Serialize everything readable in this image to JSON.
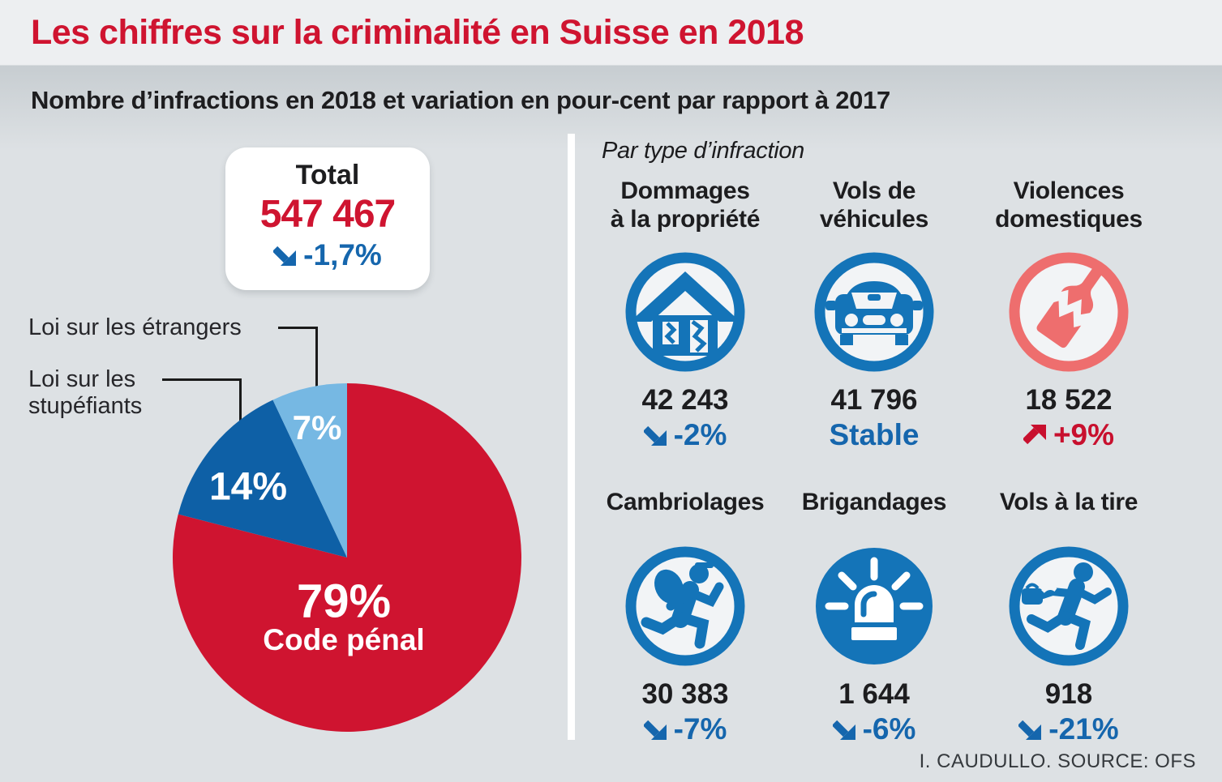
{
  "header": {
    "title": "Les chiffres sur la criminalité en Suisse en 2018",
    "subtitle": "Nombre d’infractions en 2018 et variation en pour-cent par rapport à 2017"
  },
  "colors": {
    "red": "#cf1430",
    "pie-dark": "#0e60a6",
    "pie-light": "#76b8e3",
    "icon-blue": "#1474b8",
    "salmon": "#ee6e6e",
    "text-blue": "#1566ad",
    "up-red": "#c8102e",
    "paper": "#f2f4f6",
    "bg": "#dde1e4"
  },
  "total": {
    "label": "Total",
    "value": "547 467",
    "change": "-1,7%",
    "trend": "down"
  },
  "pie_callouts": {
    "etrangers": "Loi sur les étrangers",
    "stupefiants_line1": "Loi sur les",
    "stupefiants_line2": "stupéfiants"
  },
  "chart_data": {
    "type": "pie",
    "unit": "percent",
    "start_angle": "12-o-clock",
    "direction": "clockwise",
    "total_value_displayed": "547 467",
    "total_change_displayed": "-1,7%",
    "slices": [
      {
        "label": "Code pénal",
        "value": 79,
        "display": "79%",
        "color": "#cf1430",
        "text_color": "#ffffff"
      },
      {
        "label": "Loi sur les stupéfiants",
        "value": 14,
        "display": "14%",
        "color": "#0e60a6",
        "text_color": "#ffffff"
      },
      {
        "label": "Loi sur les étrangers",
        "value": 7,
        "display": "7%",
        "color": "#76b8e3",
        "text_color": "#ffffff"
      }
    ]
  },
  "section": {
    "heading": "Par type d’infraction"
  },
  "stats": {
    "items": [
      {
        "title_line1": "Dommages",
        "title_line2": "à la propriété",
        "value": "42 243",
        "change": "-2%",
        "trend": "down",
        "icon": "broken-house-icon",
        "theme": "blue"
      },
      {
        "title_line1": "Vols de",
        "title_line2": "véhicules",
        "value": "41 796",
        "change": "Stable",
        "trend": "stable",
        "icon": "car-icon",
        "theme": "blue"
      },
      {
        "title_line1": "Violences",
        "title_line2": "domestiques",
        "value": "18 522",
        "change": "+9%",
        "trend": "up",
        "icon": "broken-bottle-icon",
        "theme": "red"
      },
      {
        "title_line1": "Cambriolages",
        "value": "30 383",
        "change": "-7%",
        "trend": "down",
        "icon": "burglar-icon",
        "theme": "blue"
      },
      {
        "title_line1": "Brigandages",
        "value": "1 644",
        "change": "-6%",
        "trend": "down",
        "icon": "siren-icon",
        "theme": "blue"
      },
      {
        "title_line1": "Vols à la tire",
        "value": "918",
        "change": "-21%",
        "trend": "down",
        "icon": "pickpocket-icon",
        "theme": "blue"
      }
    ]
  },
  "footer": {
    "source": "I. CAUDULLO. SOURCE: OFS"
  }
}
